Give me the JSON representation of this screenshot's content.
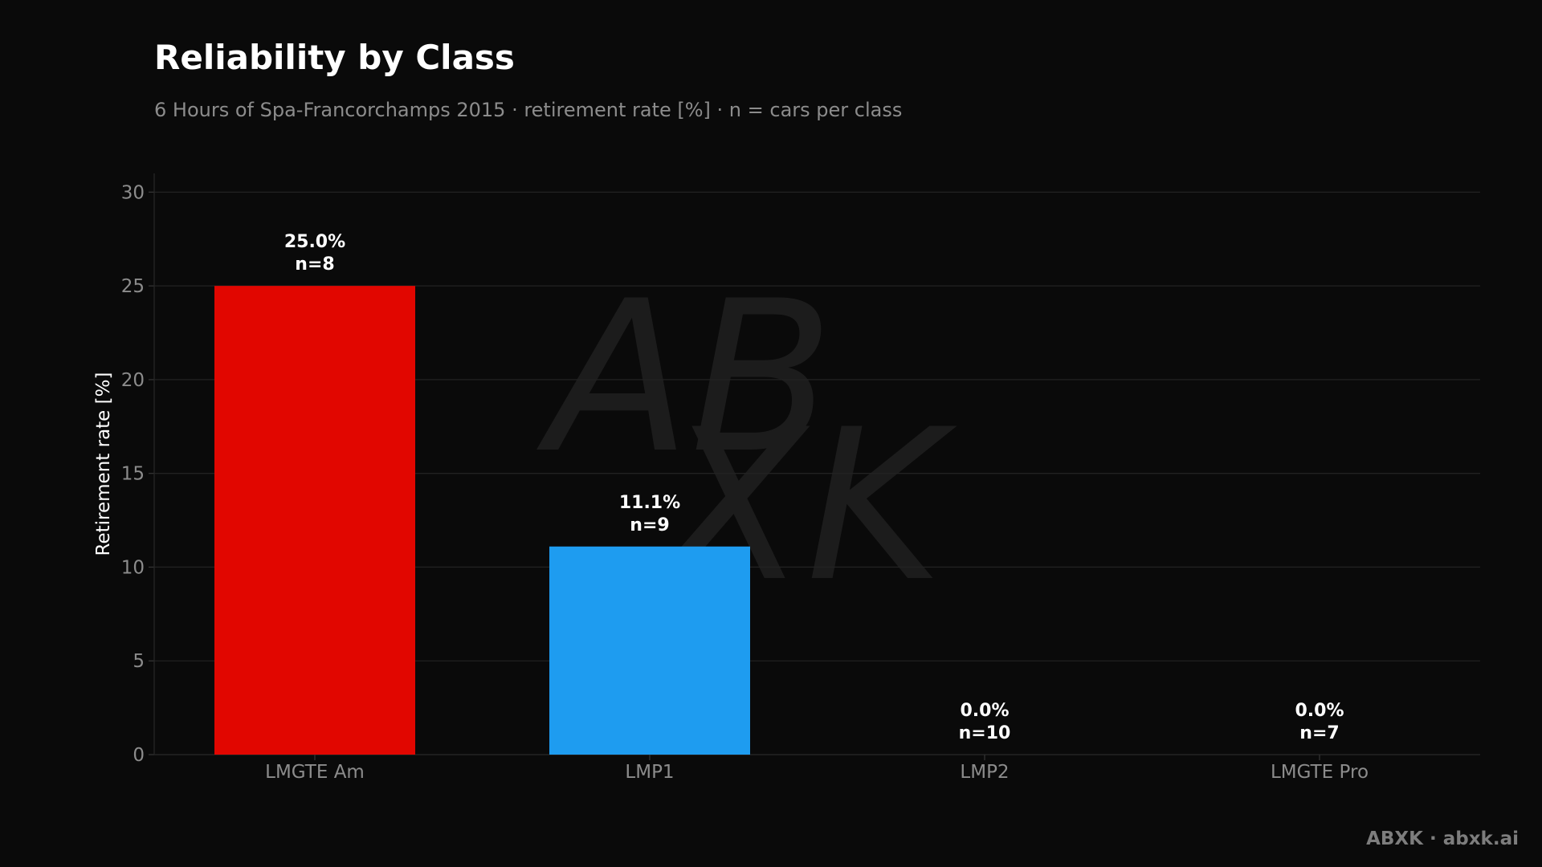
{
  "chart_data": {
    "type": "bar",
    "title": "Reliability by Class",
    "subtitle": "6 Hours of Spa-Francorchamps 2015 · retirement rate [%] · n = cars per class",
    "xlabel": "",
    "ylabel": "Retirement rate [%]",
    "ylim": [
      0,
      31
    ],
    "yticks": [
      0,
      5,
      10,
      15,
      20,
      25,
      30
    ],
    "grid": true,
    "categories": [
      "LMGTE Am",
      "LMP1",
      "LMP2",
      "LMGTE Pro"
    ],
    "values": [
      25.0,
      11.1,
      0.0,
      0.0
    ],
    "value_labels": [
      "25.0%",
      "11.1%",
      "0.0%",
      "0.0%"
    ],
    "count_labels": [
      "n=8",
      "n=9",
      "n=10",
      "n=7"
    ],
    "colors": [
      "#e10600",
      "#1e9cf0",
      "#0a0a0a",
      "#0a0a0a"
    ]
  },
  "watermark": {
    "line1": "AB",
    "line2": "XK"
  },
  "footer": {
    "credit": "ABXK · abxk.ai"
  }
}
